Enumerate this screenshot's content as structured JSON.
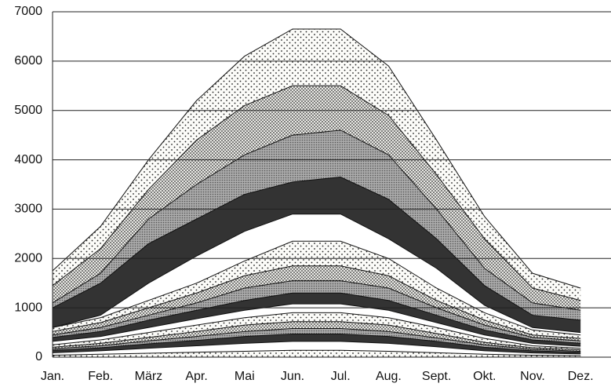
{
  "chart_data": {
    "type": "band",
    "categories": [
      "Jan.",
      "Feb.",
      "März",
      "Apr.",
      "Mai",
      "Jun.",
      "Jul.",
      "Aug.",
      "Sept.",
      "Okt.",
      "Nov.",
      "Dez."
    ],
    "ylim": [
      0,
      7000
    ],
    "yticks": [
      0,
      1000,
      2000,
      3000,
      4000,
      5000,
      6000,
      7000
    ],
    "grid": true,
    "series": [
      {
        "pattern": "sparse",
        "values": [
          1750,
          2650,
          4000,
          5200,
          6100,
          6650,
          6650,
          5900,
          4400,
          2850,
          1700,
          1400
        ]
      },
      {
        "pattern": "dense",
        "values": [
          1450,
          2200,
          3400,
          4400,
          5100,
          5500,
          5500,
          4900,
          3700,
          2400,
          1400,
          1150
        ]
      },
      {
        "pattern": "cross",
        "values": [
          1100,
          1700,
          2800,
          3500,
          4100,
          4500,
          4600,
          4100,
          3000,
          1800,
          1100,
          950
        ]
      },
      {
        "pattern": "dark",
        "values": [
          1000,
          1500,
          2300,
          2800,
          3300,
          3550,
          3650,
          3200,
          2400,
          1450,
          850,
          750
        ]
      },
      {
        "pattern": "white",
        "values": [
          600,
          850,
          1500,
          2050,
          2550,
          2900,
          2900,
          2400,
          1800,
          1050,
          600,
          500
        ]
      },
      {
        "pattern": "sparse",
        "values": [
          600,
          800,
          1150,
          1500,
          1950,
          2350,
          2350,
          2000,
          1400,
          900,
          550,
          450
        ]
      },
      {
        "pattern": "dense",
        "values": [
          520,
          700,
          1000,
          1300,
          1650,
          1850,
          1850,
          1650,
          1150,
          750,
          450,
          380
        ]
      },
      {
        "pattern": "cross",
        "values": [
          450,
          600,
          850,
          1100,
          1400,
          1550,
          1550,
          1400,
          1000,
          650,
          400,
          330
        ]
      },
      {
        "pattern": "dark",
        "values": [
          400,
          520,
          750,
          950,
          1150,
          1300,
          1300,
          1150,
          850,
          550,
          350,
          280
        ]
      },
      {
        "pattern": "white",
        "values": [
          320,
          420,
          600,
          780,
          950,
          1080,
          1080,
          950,
          700,
          450,
          280,
          220
        ]
      },
      {
        "pattern": "sparse",
        "values": [
          250,
          350,
          500,
          650,
          800,
          900,
          900,
          800,
          600,
          380,
          230,
          180
        ]
      },
      {
        "pattern": "dense",
        "values": [
          200,
          280,
          400,
          520,
          650,
          720,
          720,
          650,
          480,
          300,
          190,
          150
        ]
      },
      {
        "pattern": "cross",
        "values": [
          170,
          230,
          330,
          420,
          520,
          580,
          580,
          520,
          390,
          250,
          160,
          120
        ]
      },
      {
        "pattern": "dark",
        "values": [
          140,
          190,
          270,
          340,
          420,
          470,
          470,
          420,
          320,
          200,
          130,
          100
        ]
      },
      {
        "pattern": "white",
        "values": [
          90,
          130,
          180,
          230,
          280,
          320,
          320,
          280,
          210,
          130,
          85,
          65
        ]
      },
      {
        "pattern": "sparse",
        "values": [
          40,
          60,
          80,
          100,
          120,
          140,
          140,
          120,
          90,
          60,
          40,
          30
        ]
      }
    ]
  }
}
